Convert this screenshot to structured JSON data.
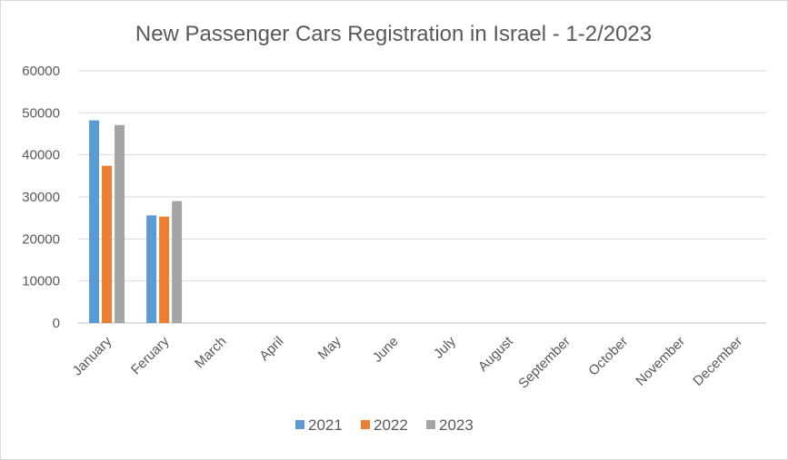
{
  "chart_data": {
    "type": "bar",
    "title": "New Passenger Cars Registration in Israel - 1-2/2023",
    "xlabel": "",
    "ylabel": "",
    "categories": [
      "January",
      "Feruary",
      "March",
      "April",
      "May",
      "June",
      "July",
      "August",
      "September",
      "October",
      "November",
      "December"
    ],
    "ylim": [
      0,
      60000
    ],
    "yticks": [
      "0",
      "10000",
      "20000",
      "30000",
      "40000",
      "50000",
      "60000"
    ],
    "grid": true,
    "legend_position": "bottom",
    "series": [
      {
        "name": "2021",
        "color": "#5b9bd5",
        "values": [
          48200,
          25600,
          null,
          null,
          null,
          null,
          null,
          null,
          null,
          null,
          null,
          null
        ]
      },
      {
        "name": "2022",
        "color": "#ed7d31",
        "values": [
          37400,
          25300,
          null,
          null,
          null,
          null,
          null,
          null,
          null,
          null,
          null,
          null
        ]
      },
      {
        "name": "2023",
        "color": "#a5a5a5",
        "values": [
          47100,
          29000,
          null,
          null,
          null,
          null,
          null,
          null,
          null,
          null,
          null,
          null
        ]
      }
    ]
  }
}
